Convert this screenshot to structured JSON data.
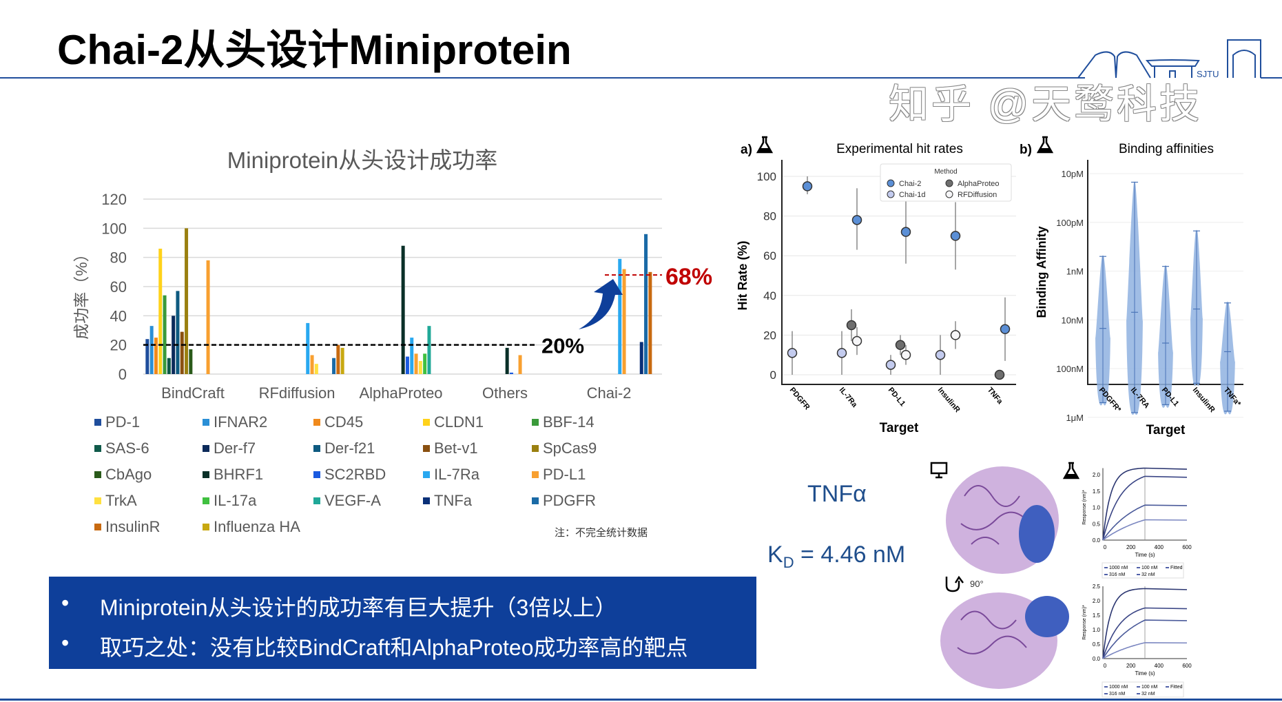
{
  "slide": {
    "title": "Chai-2从头设计Miniprotein",
    "logo_text": "SJTU",
    "note": "注：不完全统计数据",
    "bullets": [
      "Miniprotein从头设计的成功率有巨大提升（3倍以上）",
      "取巧之处：没有比较BindCraft和AlphaProteo成功率高的靶点"
    ],
    "bullet_marker": "•",
    "tnf_label": "TNFα",
    "kd_prefix": "K",
    "kd_sub": "D",
    "kd_value": " = 4.46 nM",
    "watermark": "知乎 @天鹜科技",
    "accent_color": "#1f4e9c",
    "box_color": "#0e3f9a"
  },
  "chart_data": [
    {
      "type": "bar",
      "title": "Miniprotein从头设计成功率",
      "xlabel": "",
      "ylabel": "成功率（%）",
      "ylim": [
        0,
        120
      ],
      "yticks": [
        0,
        20,
        40,
        60,
        80,
        100,
        120
      ],
      "grid": true,
      "legend_placement": "bottom",
      "categories": [
        "BindCraft",
        "RFdiffusion",
        "AlphaProteo",
        "Others",
        "Chai-2"
      ],
      "reference_lines": [
        {
          "value": 20,
          "label": "20%",
          "color": "#000000"
        },
        {
          "value": 68,
          "label": "68%",
          "color": "#c00000"
        }
      ],
      "series": [
        {
          "name": "PD-1",
          "color": "#1f4e9c",
          "values": [
            24,
            null,
            null,
            null,
            null
          ]
        },
        {
          "name": "IFNAR2",
          "color": "#2a8fd6",
          "values": [
            33,
            null,
            null,
            null,
            null
          ]
        },
        {
          "name": "CD45",
          "color": "#f08a1c",
          "values": [
            25,
            null,
            null,
            null,
            null
          ]
        },
        {
          "name": "CLDN1",
          "color": "#ffd21a",
          "values": [
            86,
            null,
            null,
            null,
            null
          ]
        },
        {
          "name": "BBF-14",
          "color": "#3a9a3a",
          "values": [
            54,
            null,
            null,
            null,
            null
          ]
        },
        {
          "name": "SAS-6",
          "color": "#0f5a4a",
          "values": [
            11,
            null,
            null,
            null,
            null
          ]
        },
        {
          "name": "Der-f7",
          "color": "#0b2a5a",
          "values": [
            40,
            null,
            null,
            null,
            null
          ]
        },
        {
          "name": "Der-f21",
          "color": "#0e5a80",
          "values": [
            57,
            null,
            null,
            null,
            null
          ]
        },
        {
          "name": "Bet-v1",
          "color": "#8a5010",
          "values": [
            29,
            null,
            null,
            null,
            null
          ]
        },
        {
          "name": "SpCas9",
          "color": "#9a8010",
          "values": [
            100,
            null,
            null,
            null,
            null
          ]
        },
        {
          "name": "CbAgo",
          "color": "#2a5a1a",
          "values": [
            17,
            null,
            null,
            null,
            null
          ]
        },
        {
          "name": "BHRF1",
          "color": "#0a3028",
          "values": [
            null,
            null,
            88,
            18,
            null
          ]
        },
        {
          "name": "SC2RBD",
          "color": "#1a5ae0",
          "values": [
            null,
            null,
            12,
            1,
            null
          ]
        },
        {
          "name": "IL-7Ra",
          "color": "#29a8f0",
          "values": [
            null,
            35,
            25,
            null,
            79
          ]
        },
        {
          "name": "PD-L1",
          "color": "#f8a030",
          "values": [
            78,
            13,
            14,
            13,
            72
          ]
        },
        {
          "name": "TrkA",
          "color": "#ffe040",
          "values": [
            null,
            7,
            9,
            null,
            null
          ]
        },
        {
          "name": "IL-17a",
          "color": "#40c040",
          "values": [
            null,
            null,
            14,
            null,
            null
          ]
        },
        {
          "name": "VEGF-A",
          "color": "#20a898",
          "values": [
            null,
            null,
            33,
            null,
            null
          ]
        },
        {
          "name": "TNFa",
          "color": "#0a3078",
          "values": [
            null,
            null,
            null,
            null,
            22
          ]
        },
        {
          "name": "PDGFR",
          "color": "#1a6aa6",
          "values": [
            null,
            11,
            null,
            null,
            96
          ]
        },
        {
          "name": "InsulinR",
          "color": "#c86a10",
          "values": [
            null,
            20,
            null,
            null,
            70
          ]
        },
        {
          "name": "Influenza HA",
          "color": "#c8a810",
          "values": [
            null,
            18,
            null,
            null,
            null
          ]
        }
      ]
    },
    {
      "type": "scatter",
      "panel_label": "a)",
      "title": "Experimental hit rates",
      "xlabel": "Target",
      "ylabel": "Hit Rate (%)",
      "ylim": [
        0,
        100
      ],
      "yticks": [
        0,
        20,
        40,
        60,
        80,
        100
      ],
      "grid": true,
      "legend_title": "Method",
      "legend_placement": "top-right",
      "categories": [
        "PDGFR",
        "IL-7Ra",
        "PD-L1",
        "InsulinR",
        "TNFa"
      ],
      "series": [
        {
          "name": "Chai-2",
          "color": "#5b8fd6",
          "points": [
            {
              "x": "PDGFR",
              "y": 95,
              "err": [
                91,
                100
              ]
            },
            {
              "x": "IL-7Ra",
              "y": 78,
              "err": [
                63,
                94
              ]
            },
            {
              "x": "PD-L1",
              "y": 72,
              "err": [
                56,
                88
              ]
            },
            {
              "x": "InsulinR",
              "y": 70,
              "err": [
                53,
                87
              ]
            },
            {
              "x": "TNFa",
              "y": 23,
              "err": [
                7,
                39
              ]
            }
          ]
        },
        {
          "name": "Chai-1d",
          "color": "#c3cbee",
          "points": [
            {
              "x": "PDGFR",
              "y": 11,
              "err": [
                0,
                22
              ]
            },
            {
              "x": "IL-7Ra",
              "y": 11,
              "err": [
                0,
                22
              ]
            },
            {
              "x": "PD-L1",
              "y": 5,
              "err": [
                0,
                10
              ]
            },
            {
              "x": "InsulinR",
              "y": 10,
              "err": [
                0,
                20
              ]
            }
          ]
        },
        {
          "name": "AlphaProteo",
          "color": "#6e6e6e",
          "points": [
            {
              "x": "IL-7Ra",
              "y": 25,
              "err": [
                17,
                33
              ]
            },
            {
              "x": "PD-L1",
              "y": 15,
              "err": [
                10,
                20
              ]
            },
            {
              "x": "TNFa",
              "y": 0,
              "err": [
                0,
                0
              ]
            }
          ]
        },
        {
          "name": "RFDiffusion",
          "color": "#f6f6f8",
          "points": [
            {
              "x": "IL-7Ra",
              "y": 17,
              "err": [
                10,
                24
              ]
            },
            {
              "x": "PD-L1",
              "y": 10,
              "err": [
                5,
                15
              ]
            },
            {
              "x": "InsulinR",
              "y": 20,
              "err": [
                13,
                27
              ]
            }
          ]
        }
      ]
    },
    {
      "type": "violin",
      "panel_label": "b)",
      "title": "Binding affinities",
      "xlabel": "Target",
      "ylabel": "Binding Affinity",
      "yscale": "log",
      "yaxis_inverted": true,
      "yticks": [
        "10pM",
        "100pM",
        "1nM",
        "10nM",
        "100nM",
        "1μM"
      ],
      "unit": "nM",
      "color": "#8fb2e0",
      "categories": [
        "PDGFR*",
        "IL-7RA",
        "PD-L1",
        "InsulinR",
        "TNFa*"
      ],
      "distributions": [
        {
          "x": "PDGFR*",
          "min": 0.5,
          "median": 15,
          "max": 500
        },
        {
          "x": "IL-7RA",
          "min": 0.015,
          "median": 7,
          "max": 800
        },
        {
          "x": "PD-L1",
          "min": 0.8,
          "median": 30,
          "max": 550
        },
        {
          "x": "InsulinR",
          "min": 0.15,
          "median": 6,
          "max": 200
        },
        {
          "x": "TNFa*",
          "min": 4.5,
          "median": 45,
          "max": 750
        }
      ]
    },
    {
      "type": "line",
      "xlabel": "Time (s)",
      "ylabel": "Response (nm)*",
      "xlim": [
        0,
        600
      ],
      "xticks": [
        0,
        200,
        400,
        600
      ],
      "ylim": [
        0,
        2.2
      ],
      "yticks": [
        0.0,
        0.5,
        1.0,
        1.5,
        2.0
      ],
      "legend": [
        "1000 nM",
        "100 nM",
        "Fitted",
        "316 nM",
        "32 nM"
      ],
      "series": [
        {
          "name": "1000 nM",
          "plateau": 2.2
        },
        {
          "name": "316 nM",
          "plateau": 1.95
        },
        {
          "name": "100 nM",
          "plateau": 1.07
        },
        {
          "name": "32 nM",
          "plateau": 0.62
        }
      ]
    },
    {
      "type": "line",
      "xlabel": "Time (s)",
      "ylabel": "Response (nm)*",
      "xlim": [
        0,
        600
      ],
      "xticks": [
        0,
        200,
        400,
        600
      ],
      "ylim": [
        0,
        2.5
      ],
      "yticks": [
        0.0,
        0.5,
        1.0,
        1.5,
        2.0,
        2.5
      ],
      "legend": [
        "1000 nM",
        "100 nM",
        "Fitted",
        "316 nM",
        "32 nM"
      ],
      "series": [
        {
          "name": "1000 nM",
          "plateau": 2.42
        },
        {
          "name": "316 nM",
          "plateau": 1.75
        },
        {
          "name": "100 nM",
          "plateau": 1.33
        },
        {
          "name": "32 nM",
          "plateau": 0.55
        }
      ]
    }
  ]
}
